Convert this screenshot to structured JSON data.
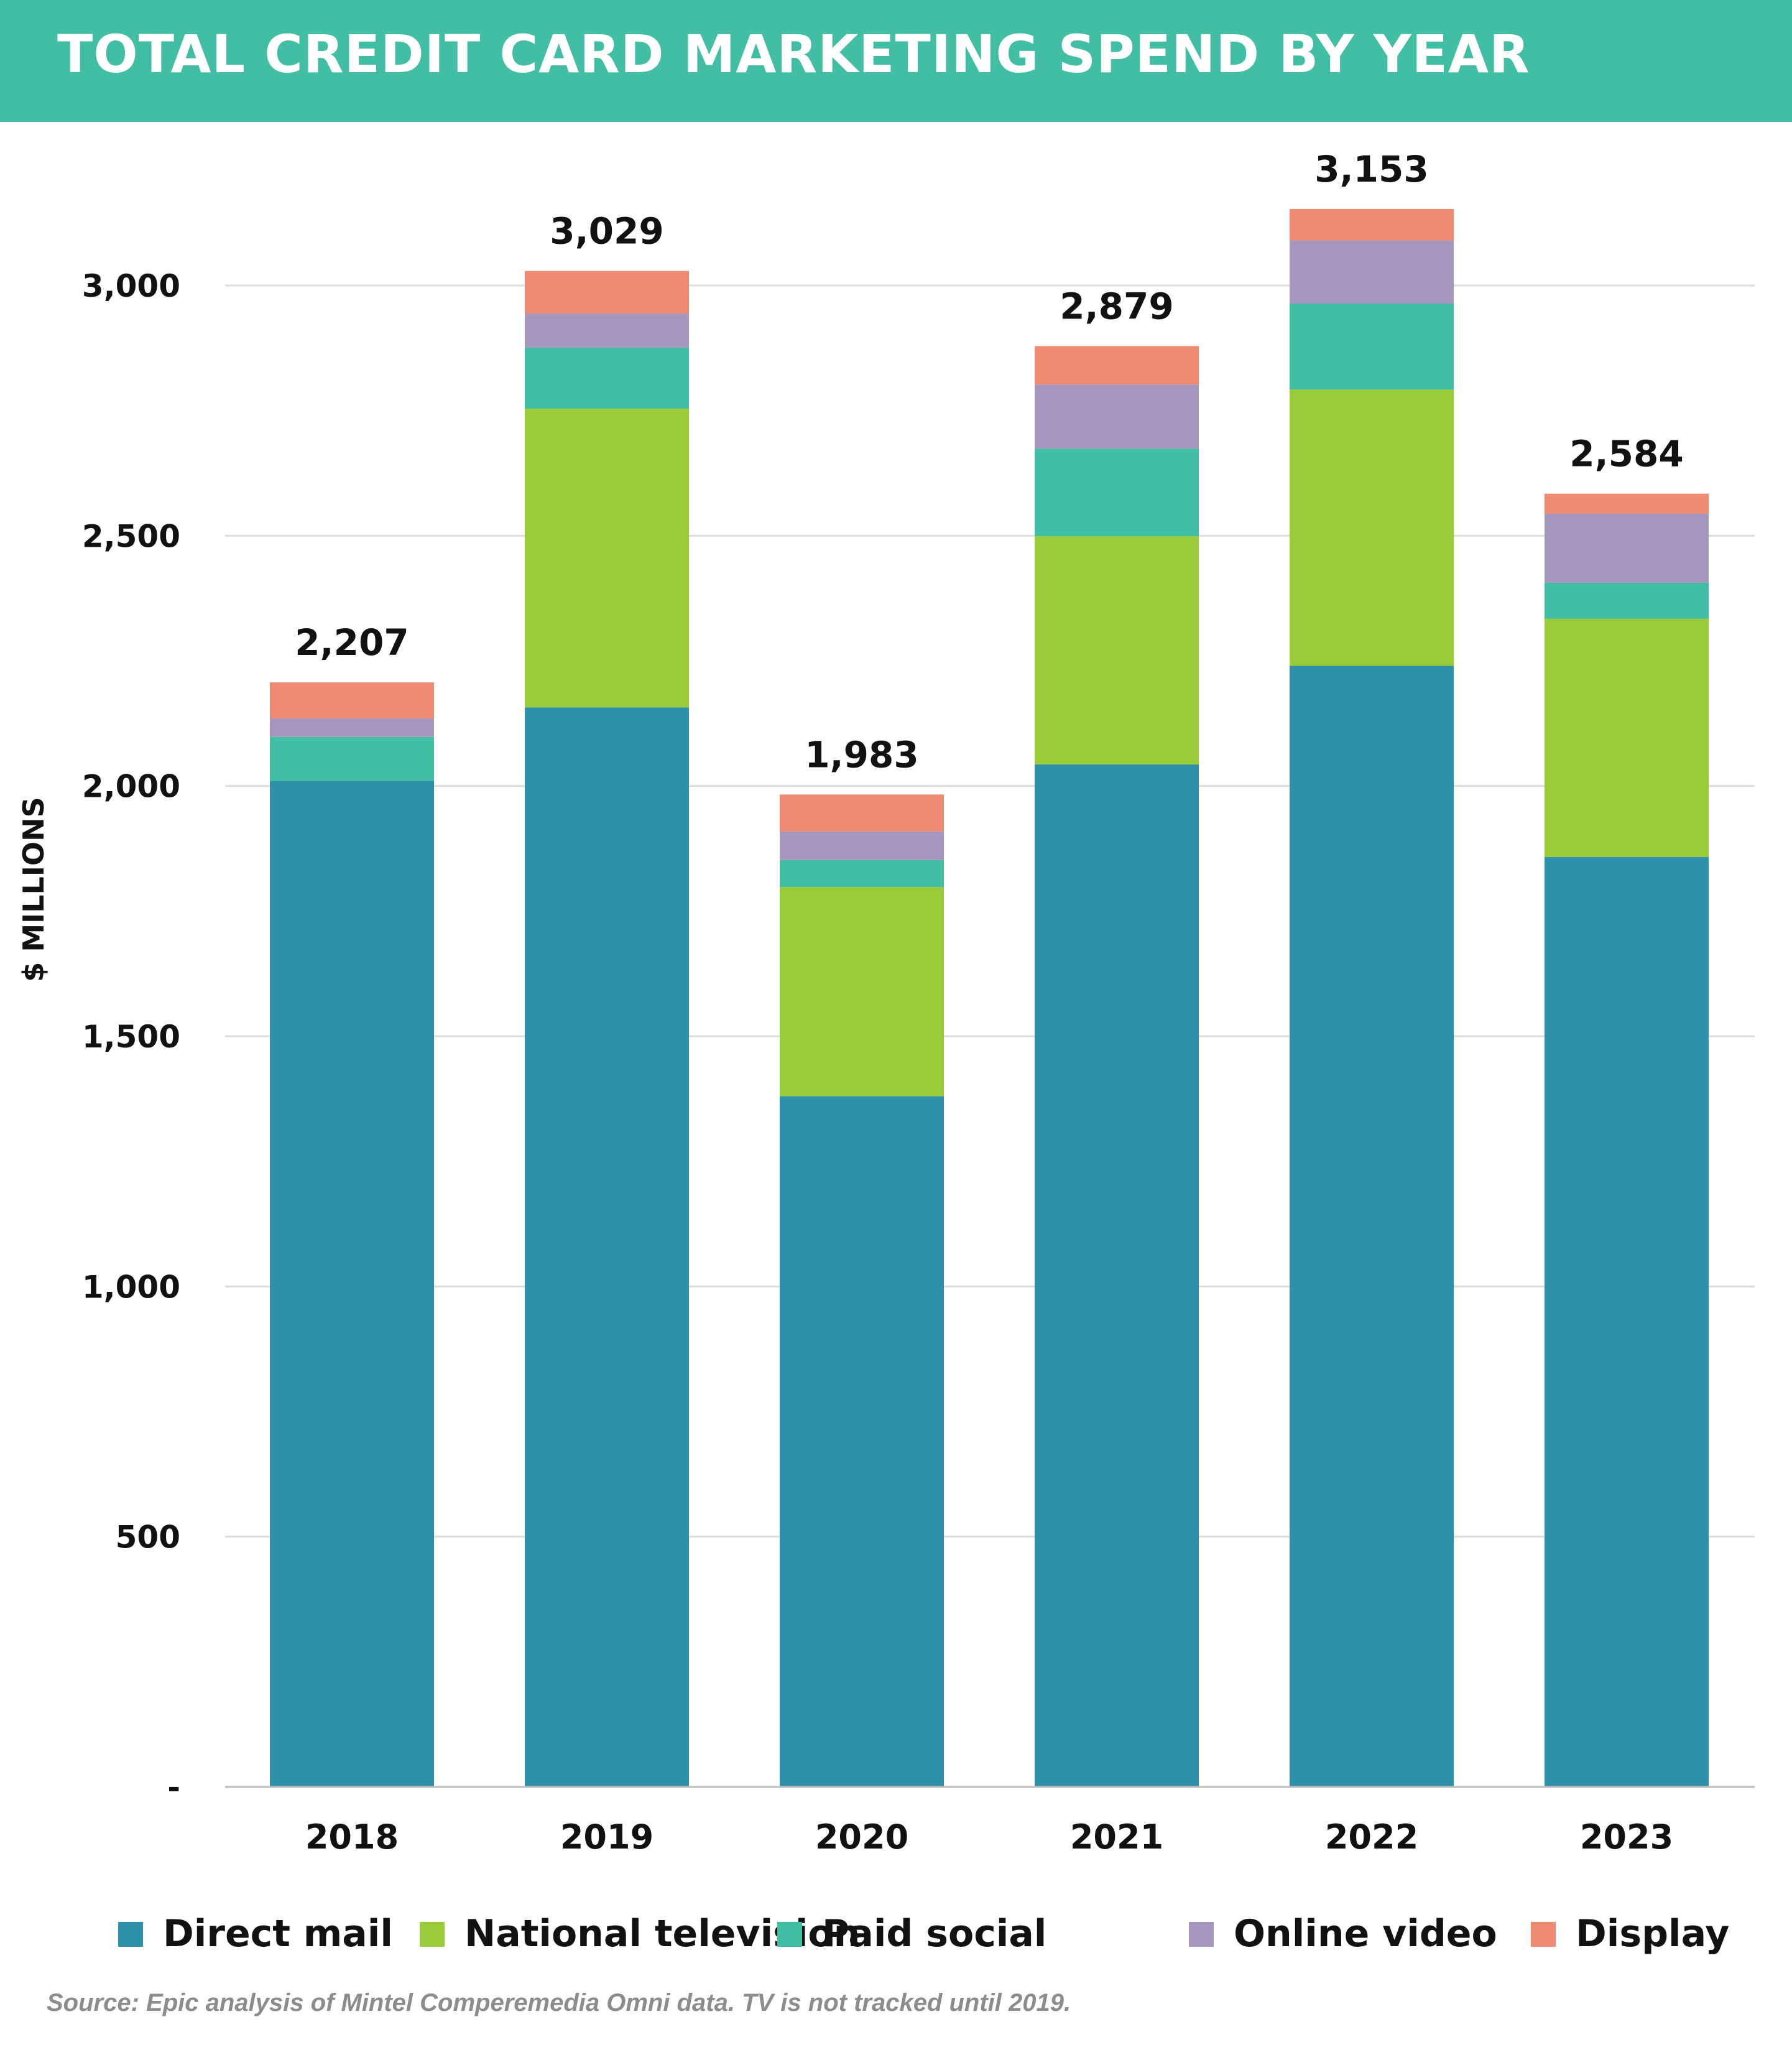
{
  "header": {
    "title": "TOTAL CREDIT CARD MARKETING SPEND BY YEAR"
  },
  "colors": {
    "header_bg": "#41bea3",
    "direct_mail": "#2e90a9",
    "national_television": "#9acb39",
    "paid_social": "#41bea3",
    "online_video": "#a597bd",
    "display": "#ef8a73",
    "gridline": "#dddddd",
    "axis_line": "#bbbbbb"
  },
  "source_note": "Source: Epic analysis of Mintel Comperemedia Omni data. TV is not tracked until 2019.",
  "chart_data": {
    "type": "bar",
    "stacked": true,
    "title": "TOTAL CREDIT CARD MARKETING SPEND BY YEAR",
    "xlabel": "",
    "ylabel": "$ MILLIONS",
    "ylim": [
      0,
      3000
    ],
    "yticks": [
      0,
      500,
      1000,
      1500,
      2000,
      2500,
      3000
    ],
    "ytick_labels": [
      "-",
      "500",
      "1,000",
      "1,500",
      "2,000",
      "2,500",
      "3,000"
    ],
    "grid": true,
    "legend_position": "bottom",
    "categories": [
      "2018",
      "2019",
      "2020",
      "2021",
      "2022",
      "2023"
    ],
    "totals": [
      "2,207",
      "3,029",
      "1,983",
      "2,879",
      "3,153",
      "2,584"
    ],
    "total_values": [
      2207,
      3029,
      1983,
      2879,
      3153,
      2584
    ],
    "series": [
      {
        "name": "Direct mail",
        "color": "#2e90a9",
        "values": [
          2010,
          2157,
          1380,
          2043,
          2240,
          1858
        ]
      },
      {
        "name": "National television",
        "color": "#9acb39",
        "values": [
          0,
          597,
          418,
          456,
          552,
          476
        ]
      },
      {
        "name": "Paid social",
        "color": "#41bea3",
        "values": [
          88,
          122,
          54,
          175,
          172,
          72
        ]
      },
      {
        "name": "Online video",
        "color": "#a597bd",
        "values": [
          37,
          68,
          57,
          128,
          126,
          138
        ]
      },
      {
        "name": "Display",
        "color": "#ef8a73",
        "values": [
          72,
          85,
          74,
          77,
          63,
          40
        ]
      }
    ]
  }
}
